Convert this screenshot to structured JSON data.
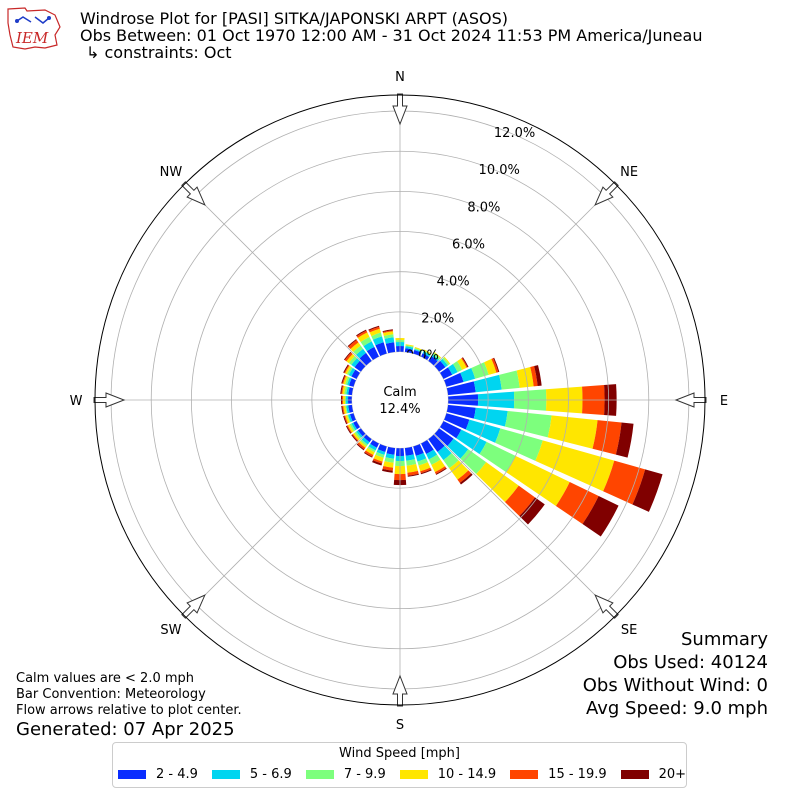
{
  "header": {
    "title": "Windrose Plot for [PASI] SITKA/JAPONSKI ARPT (ASOS)",
    "obs_between": "Obs Between: 01 Oct 1970 12:00 AM - 31 Oct 2024 11:53 PM America/Juneau",
    "constraints": "↳ constraints: Oct",
    "logo_text": "IEM"
  },
  "notes": {
    "calm_note": "Calm values are < 2.0 mph",
    "bar_convention": "Bar Convention: Meteorology",
    "flow_arrows": "Flow arrows relative to plot center.",
    "generated": "Generated: 07 Apr 2025"
  },
  "summary": {
    "title": "Summary",
    "obs_used": "Obs Used: 40124",
    "obs_without_wind": "Obs Without Wind: 0",
    "avg_speed": "Avg Speed: 9.0 mph"
  },
  "chart_data": {
    "type": "windrose",
    "calm_label": "Calm",
    "calm_value": "12.4%",
    "radial_ticks": [
      "0.0%",
      "2.0%",
      "4.0%",
      "6.0%",
      "8.0%",
      "10.0%",
      "12.0%"
    ],
    "radial_range": [
      0,
      12.8
    ],
    "directions": [
      "N",
      "NE",
      "E",
      "SE",
      "S",
      "SW",
      "W",
      "NW"
    ],
    "legend_title": "Wind Speed [mph]",
    "bins": [
      {
        "label": "2 - 4.9",
        "color": "#0a2dff"
      },
      {
        "label": "5 - 6.9",
        "color": "#00d5f0"
      },
      {
        "label": "7 - 9.9",
        "color": "#7dff7d"
      },
      {
        "label": "10 - 14.9",
        "color": "#ffe600"
      },
      {
        "label": "15 - 19.9",
        "color": "#ff4500"
      },
      {
        "label": "20+",
        "color": "#800000"
      }
    ],
    "sectors_deg": [
      0,
      10,
      20,
      30,
      40,
      50,
      60,
      70,
      80,
      90,
      100,
      110,
      120,
      130,
      140,
      150,
      160,
      170,
      180,
      190,
      200,
      210,
      220,
      230,
      240,
      250,
      260,
      270,
      280,
      290,
      300,
      310,
      320,
      330,
      340,
      350
    ],
    "cumulative_pct": [
      [
        0.3,
        0.5,
        0.6,
        0.7,
        0.7,
        0.7
      ],
      [
        0.2,
        0.3,
        0.35,
        0.4,
        0.4,
        0.4
      ],
      [
        0.2,
        0.25,
        0.3,
        0.35,
        0.35,
        0.35
      ],
      [
        0.2,
        0.3,
        0.35,
        0.4,
        0.4,
        0.4
      ],
      [
        0.3,
        0.4,
        0.5,
        0.55,
        0.55,
        0.55
      ],
      [
        0.4,
        0.55,
        0.65,
        0.7,
        0.7,
        0.7
      ],
      [
        0.5,
        0.8,
        1.05,
        1.3,
        1.35,
        1.4
      ],
      [
        0.9,
        1.5,
        2.2,
        2.6,
        2.7,
        2.75
      ],
      [
        1.4,
        2.7,
        3.6,
        4.3,
        4.5,
        4.7
      ],
      [
        1.5,
        3.3,
        4.9,
        6.7,
        7.8,
        8.4
      ],
      [
        1.4,
        3.0,
        5.2,
        7.5,
        8.7,
        9.3
      ],
      [
        1.2,
        2.8,
        5.0,
        8.7,
        10.3,
        11.2
      ],
      [
        1.0,
        2.4,
        4.0,
        7.0,
        8.6,
        9.7
      ],
      [
        0.9,
        1.8,
        2.9,
        4.9,
        5.9,
        6.5
      ],
      [
        0.8,
        1.3,
        1.8,
        2.5,
        2.7,
        2.8
      ],
      [
        0.6,
        0.9,
        1.2,
        1.6,
        1.7,
        1.75
      ],
      [
        0.5,
        0.8,
        1.0,
        1.3,
        1.4,
        1.45
      ],
      [
        0.4,
        0.65,
        0.9,
        1.25,
        1.4,
        1.45
      ],
      [
        0.4,
        0.65,
        0.9,
        1.3,
        1.6,
        1.85
      ],
      [
        0.35,
        0.55,
        0.75,
        1.0,
        1.15,
        1.25
      ],
      [
        0.3,
        0.45,
        0.6,
        0.8,
        0.9,
        1.0
      ],
      [
        0.25,
        0.4,
        0.5,
        0.65,
        0.75,
        0.8
      ],
      [
        0.2,
        0.35,
        0.45,
        0.55,
        0.65,
        0.7
      ],
      [
        0.2,
        0.3,
        0.4,
        0.5,
        0.55,
        0.6
      ],
      [
        0.2,
        0.3,
        0.4,
        0.5,
        0.55,
        0.6
      ],
      [
        0.2,
        0.3,
        0.35,
        0.45,
        0.5,
        0.55
      ],
      [
        0.2,
        0.3,
        0.35,
        0.45,
        0.5,
        0.55
      ],
      [
        0.2,
        0.3,
        0.35,
        0.45,
        0.5,
        0.55
      ],
      [
        0.2,
        0.3,
        0.4,
        0.5,
        0.55,
        0.6
      ],
      [
        0.25,
        0.35,
        0.45,
        0.55,
        0.6,
        0.65
      ],
      [
        0.3,
        0.45,
        0.55,
        0.65,
        0.7,
        0.75
      ],
      [
        0.4,
        0.6,
        0.75,
        0.9,
        1.0,
        1.05
      ],
      [
        0.5,
        0.75,
        0.95,
        1.15,
        1.3,
        1.35
      ],
      [
        0.55,
        0.85,
        1.1,
        1.35,
        1.45,
        1.5
      ],
      [
        0.6,
        0.9,
        1.1,
        1.3,
        1.4,
        1.45
      ],
      [
        0.5,
        0.75,
        0.9,
        1.05,
        1.1,
        1.15
      ]
    ]
  }
}
